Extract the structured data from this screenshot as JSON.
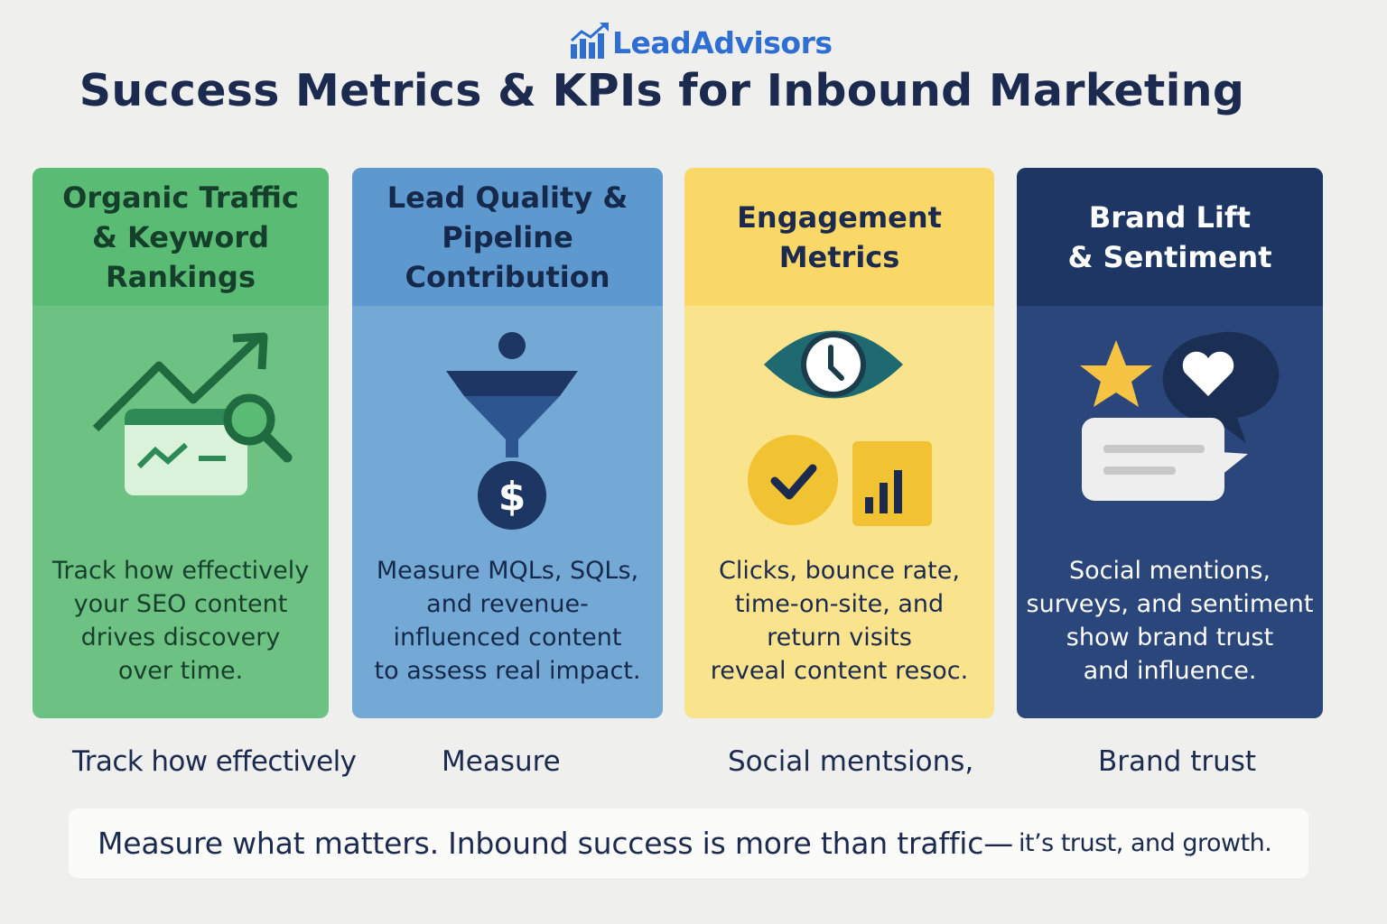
{
  "logo": {
    "text": "LeadAdvisors",
    "icon": "bar-chart-growth-icon",
    "color": "#2f6fd1"
  },
  "page_title": "Success Metrics & KPIs for Inbound Marketing",
  "cards": [
    {
      "title_lines": [
        "Organic Traffic",
        "& Keyword Rankings"
      ],
      "icon": "trend-chart-magnifier-icon",
      "desc_lines": [
        "Track how effectively",
        "your SEO content",
        "drives discovery",
        "over time."
      ],
      "color": "#6dc283"
    },
    {
      "title_lines": [
        "Lead Quality &",
        "Pipeline Contribution"
      ],
      "icon": "funnel-dollar-icon",
      "desc_lines": [
        "Measure MQLs, SQLs,",
        "and revenue-",
        "influenced content",
        "to assess real impact."
      ],
      "color": "#74a9d6"
    },
    {
      "title_lines": [
        "Engagement",
        "Metrics"
      ],
      "icon": "eye-clock-check-bars-icon",
      "desc_lines": [
        "Clicks, bounce rate,",
        "time-on-site, and",
        "return visits",
        "reveal content resoc."
      ],
      "color": "#fae38d"
    },
    {
      "title_lines": [
        "Brand Lift",
        "& Sentiment"
      ],
      "icon": "star-heart-chat-icon",
      "desc_lines": [
        "Social mentions,",
        "surveys, and sentiment",
        "show brand trust",
        "and influence."
      ],
      "color": "#2a467a"
    }
  ],
  "under_labels": [
    "Track how effectively",
    "Measure",
    "Social  mentsions,",
    "Brand trust"
  ],
  "banner": {
    "main": "Measure  what matters. Inbound success is more than traffic—",
    "tail": "it’s trust, and growth."
  }
}
